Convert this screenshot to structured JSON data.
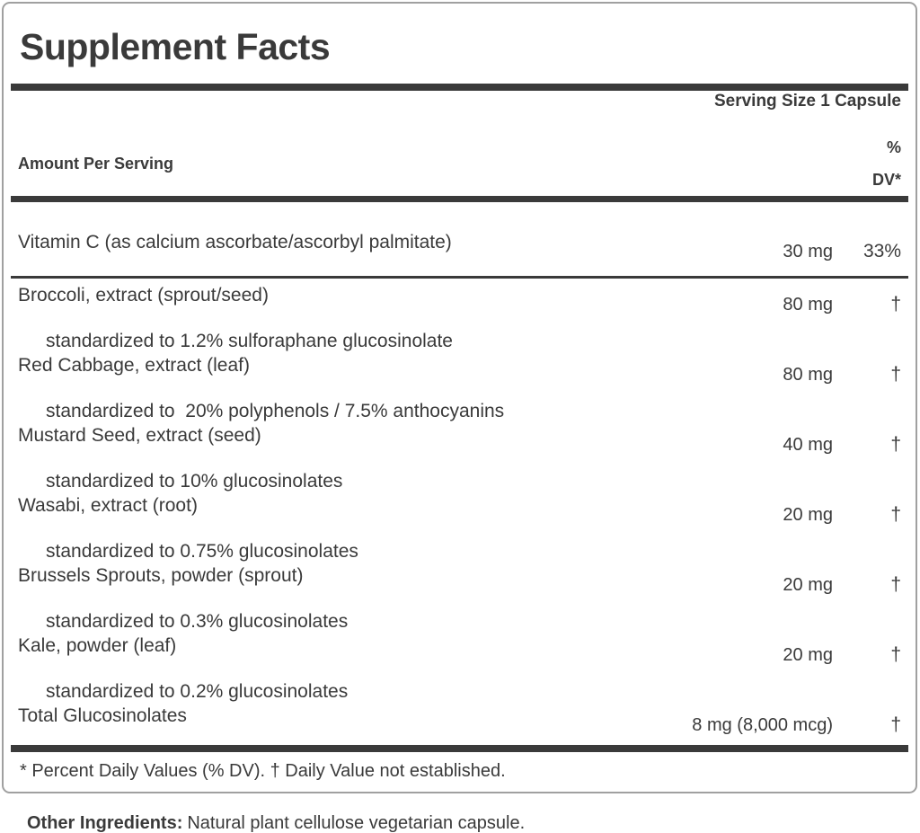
{
  "panel": {
    "title": "Supplement Facts",
    "serving_size": "Serving Size 1 Capsule",
    "columns": {
      "amount_header": "Amount Per Serving",
      "dv_header_line1": "%",
      "dv_header_line2": "DV*"
    },
    "rows": [
      {
        "name": "Vitamin C (as calcium ascorbate/ascorbyl palmitate)",
        "amount": "30 mg",
        "dv": "33%",
        "sub": ""
      },
      {
        "name": "Broccoli, extract (sprout/seed)",
        "amount": "80 mg",
        "dv": "†",
        "sub": "standardized to 1.2% sulforaphane glucosinolate"
      },
      {
        "name": "Red Cabbage, extract (leaf)",
        "amount": "80 mg",
        "dv": "†",
        "sub": "standardized to  20% polyphenols / 7.5% anthocyanins"
      },
      {
        "name": "Mustard Seed, extract (seed)",
        "amount": "40 mg",
        "dv": "†",
        "sub": "standardized to 10% glucosinolates"
      },
      {
        "name": "Wasabi, extract (root)",
        "amount": "20 mg",
        "dv": "†",
        "sub": "standardized to 0.75% glucosinolates"
      },
      {
        "name": "Brussels Sprouts, powder (sprout)",
        "amount": "20 mg",
        "dv": "†",
        "sub": "standardized to 0.3% glucosinolates"
      },
      {
        "name": "Kale, powder (leaf)",
        "amount": "20 mg",
        "dv": "†",
        "sub": "standardized to 0.2% glucosinolates"
      },
      {
        "name": "Total Glucosinolates",
        "amount": "8 mg (8,000 mcg)",
        "dv": "†",
        "sub": ""
      }
    ],
    "footnote": "* Percent Daily Values (% DV). † Daily Value not established."
  },
  "other_ingredients": {
    "label": "Other Ingredients:",
    "text": "Natural plant cellulose vegetarian capsule."
  },
  "colors": {
    "text": "#3a3a3a",
    "rule": "#3a3a3a",
    "border": "#a0a0a0",
    "background": "#ffffff"
  }
}
